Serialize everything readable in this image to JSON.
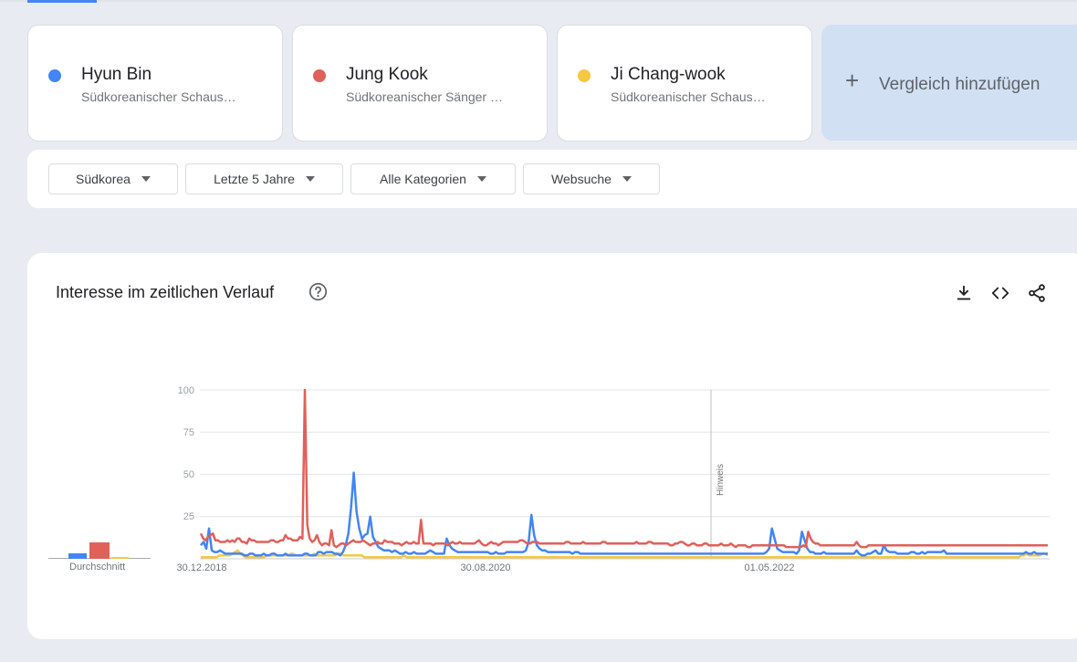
{
  "terms": [
    {
      "name": "Hyun Bin",
      "subtitle": "Südkoreanischer Schaus…",
      "color": "#4285f4"
    },
    {
      "name": "Jung Kook",
      "subtitle": "Südkoreanischer Sänger …",
      "color": "#e0605a"
    },
    {
      "name": "Ji Chang-wook",
      "subtitle": "Südkoreanischer Schaus…",
      "color": "#f4c842"
    }
  ],
  "add_compare": {
    "label": "Vergleich hinzufügen",
    "icon": "plus-icon"
  },
  "filters": [
    {
      "label": "Südkorea"
    },
    {
      "label": "Letzte 5 Jahre"
    },
    {
      "label": "Alle Kategorien"
    },
    {
      "label": "Websuche"
    }
  ],
  "chart": {
    "title": "Interesse im zeitlichen Verlauf",
    "icons": [
      "help-icon",
      "download-icon",
      "embed-icon",
      "share-icon"
    ],
    "average_label": "Durchschnitt",
    "note_label": "Hinweis"
  },
  "chart_data": {
    "type": "line",
    "y_ticks": [
      "100",
      "75",
      "50",
      "25"
    ],
    "x_tick_labels": [
      "30.12.2018",
      "30.08.2020",
      "01.05.2022"
    ],
    "ylim": [
      0,
      100
    ],
    "averages": {
      "Hyun Bin": 3,
      "Jung Kook": 9,
      "Ji Chang-wook": 1
    },
    "series": [
      {
        "name": "Hyun Bin",
        "color": "#4285f4",
        "values": [
          8,
          10,
          6,
          18,
          5,
          4,
          4,
          5,
          4,
          3,
          3,
          3,
          3,
          3,
          3,
          3,
          2,
          2,
          3,
          3,
          2,
          2,
          2,
          3,
          2,
          2,
          3,
          3,
          2,
          2,
          2,
          3,
          2,
          2,
          2,
          2,
          2,
          2,
          3,
          3,
          2,
          2,
          2,
          4,
          4,
          3,
          4,
          4,
          4,
          3,
          3,
          2,
          4,
          8,
          15,
          30,
          51,
          28,
          18,
          12,
          14,
          15,
          25,
          13,
          10,
          7,
          6,
          5,
          5,
          5,
          4,
          5,
          4,
          3,
          3,
          4,
          3,
          3,
          4,
          3,
          3,
          3,
          3,
          4,
          5,
          4,
          3,
          3,
          3,
          3,
          12,
          8,
          6,
          5,
          4,
          4,
          4,
          4,
          4,
          4,
          4,
          4,
          4,
          4,
          4,
          4,
          3,
          3,
          4,
          3,
          3,
          3,
          4,
          4,
          4,
          4,
          4,
          4,
          4,
          5,
          10,
          26,
          14,
          8,
          6,
          5,
          5,
          4,
          4,
          4,
          4,
          4,
          4,
          4,
          4,
          4,
          3,
          4,
          4,
          3,
          3,
          3,
          3,
          3,
          3,
          3,
          3,
          3,
          3,
          3,
          3,
          3,
          3,
          3,
          3,
          3,
          3,
          3,
          3,
          3,
          3,
          3,
          3,
          3,
          3,
          3,
          3,
          3,
          3,
          3,
          3,
          3,
          3,
          3,
          3,
          3,
          3,
          3,
          3,
          3,
          3,
          3,
          3,
          3,
          3,
          3,
          3,
          3,
          3,
          3,
          3,
          3,
          3,
          3,
          3,
          3,
          3,
          3,
          3,
          3,
          3,
          3,
          3,
          3,
          3,
          3,
          3,
          4,
          6,
          18,
          12,
          6,
          5,
          4,
          4,
          4,
          4,
          4,
          3,
          5,
          16,
          11,
          6,
          4,
          4,
          3,
          3,
          3,
          4,
          3,
          3,
          3,
          3,
          3,
          3,
          3,
          3,
          3,
          3,
          3,
          5,
          3,
          2,
          2,
          3,
          3,
          4,
          5,
          3,
          3,
          8,
          5,
          4,
          4,
          4,
          3,
          3,
          3,
          3,
          3,
          4,
          4,
          3,
          3,
          4,
          3,
          4,
          4,
          4,
          4,
          4,
          4,
          5,
          3,
          3,
          3,
          3,
          3,
          3,
          3,
          3,
          3,
          3,
          3,
          3,
          3,
          3,
          3,
          3,
          3,
          3,
          3,
          3,
          3,
          3,
          3,
          3,
          3,
          3,
          3,
          3,
          3,
          4,
          3,
          3,
          4,
          3,
          3,
          3,
          3,
          3
        ]
      },
      {
        "name": "Jung Kook",
        "color": "#e0605a",
        "values": [
          15,
          12,
          11,
          13,
          14,
          15,
          11,
          11,
          10,
          10,
          10,
          11,
          10,
          11,
          10,
          12,
          12,
          10,
          10,
          9,
          12,
          11,
          11,
          10,
          10,
          10,
          10,
          10,
          10,
          11,
          11,
          10,
          10,
          11,
          11,
          14,
          12,
          12,
          11,
          11,
          11,
          13,
          12,
          100,
          20,
          12,
          10,
          11,
          14,
          10,
          8,
          9,
          9,
          8,
          17,
          8,
          7,
          8,
          9,
          9,
          8,
          9,
          10,
          11,
          10,
          10,
          10,
          11,
          10,
          9,
          8,
          9,
          9,
          10,
          9,
          9,
          11,
          10,
          10,
          10,
          9,
          9,
          9,
          8,
          9,
          10,
          9,
          9,
          10,
          9,
          9,
          23,
          9,
          9,
          9,
          9,
          8,
          9,
          9,
          9,
          9,
          9,
          8,
          9,
          10,
          9,
          9,
          10,
          9,
          9,
          9,
          9,
          9,
          9,
          10,
          11,
          9,
          8,
          8,
          9,
          10,
          9,
          9,
          8,
          9,
          10,
          10,
          10,
          10,
          10,
          10,
          10,
          11,
          11,
          10,
          9,
          9,
          10,
          10,
          10,
          9,
          9,
          9,
          9,
          9,
          9,
          9,
          9,
          9,
          9,
          9,
          10,
          10,
          9,
          9,
          9,
          9,
          9,
          10,
          9,
          9,
          9,
          9,
          9,
          9,
          9,
          10,
          10,
          9,
          9,
          9,
          9,
          9,
          9,
          9,
          9,
          9,
          9,
          9,
          9,
          10,
          9,
          9,
          9,
          9,
          10,
          10,
          9,
          9,
          9,
          9,
          9,
          9,
          9,
          8,
          8,
          9,
          9,
          10,
          10,
          9,
          8,
          8,
          9,
          9,
          8,
          8,
          8,
          9,
          9,
          8,
          8,
          8,
          8,
          8,
          9,
          8,
          8,
          8,
          9,
          8,
          7,
          8,
          8,
          8,
          8,
          7,
          7,
          8,
          8,
          8,
          8,
          8,
          8,
          8,
          8,
          8,
          8,
          8,
          8,
          8,
          8,
          7,
          7,
          7,
          7,
          7,
          7,
          7,
          8,
          7,
          16,
          12,
          10,
          9,
          9,
          8,
          8,
          8,
          8,
          8,
          8,
          8,
          8,
          8,
          8,
          8,
          8,
          8,
          8,
          8,
          10,
          8,
          7,
          7,
          7,
          8,
          8,
          8,
          8,
          8,
          8,
          8,
          8,
          8,
          8,
          8,
          8,
          8,
          8,
          8,
          8,
          8,
          8,
          8,
          8,
          8,
          8,
          8,
          8,
          8,
          8,
          8,
          8,
          8,
          8,
          8,
          8,
          8,
          8,
          8,
          8,
          8,
          8,
          8,
          8,
          8,
          8,
          8,
          8,
          8,
          8,
          8,
          8,
          8,
          8,
          8,
          8,
          8,
          8,
          8,
          8,
          8,
          8,
          8,
          8,
          8,
          8,
          8,
          8,
          8,
          8,
          8,
          8,
          8,
          8,
          8,
          8,
          8,
          8,
          8
        ]
      },
      {
        "name": "Ji Chang-wook",
        "color": "#f4c842",
        "values": [
          1,
          1,
          1,
          1,
          1,
          1,
          1,
          2,
          2,
          2,
          2,
          2,
          3,
          4,
          5,
          3,
          2,
          1,
          1,
          1,
          1,
          1,
          1,
          1,
          1,
          2,
          2,
          2,
          2,
          2,
          2,
          2,
          2,
          2,
          3,
          3,
          2,
          2,
          2,
          2,
          2,
          2,
          2,
          3,
          2,
          2,
          2,
          2,
          2,
          2,
          2,
          2,
          3,
          3,
          2,
          2,
          2,
          2,
          2,
          2,
          2,
          2,
          1,
          1,
          1,
          1,
          1,
          1,
          1,
          1,
          1,
          1,
          1,
          1,
          1,
          1,
          1,
          2,
          1,
          1,
          1,
          1,
          1,
          1,
          1,
          1,
          1,
          1,
          1,
          1,
          1,
          1,
          1,
          1,
          1,
          1,
          1,
          1,
          1,
          1,
          1,
          1,
          1,
          1,
          1,
          1,
          1,
          1,
          1,
          1,
          1,
          1,
          1,
          1,
          1,
          1,
          1,
          1,
          1,
          1,
          1,
          1,
          1,
          1,
          1,
          1,
          1,
          1,
          1,
          1,
          1,
          1,
          1,
          1,
          1,
          1,
          1,
          1,
          1,
          1,
          1,
          1,
          1,
          1,
          1,
          1,
          1,
          1,
          1,
          1,
          1,
          1,
          1,
          1,
          1,
          1,
          1,
          1,
          1,
          1,
          1,
          1,
          1,
          1,
          1,
          1,
          1,
          1,
          1,
          1,
          1,
          1,
          1,
          1,
          1,
          1,
          1,
          1,
          1,
          1,
          1,
          1,
          1,
          1,
          1,
          1,
          1,
          1,
          1,
          1,
          1,
          1,
          1,
          1,
          1,
          1,
          1,
          1,
          1,
          1,
          1,
          1,
          1,
          1,
          1,
          1,
          1,
          1,
          1,
          1,
          1,
          1,
          1,
          1,
          1,
          1,
          1,
          1,
          1,
          1,
          1,
          1,
          1,
          1,
          1,
          1,
          1,
          1,
          1,
          1,
          1,
          1,
          1,
          1,
          1,
          1,
          1,
          1,
          1,
          1,
          1,
          1,
          1,
          1,
          1,
          1,
          1,
          1,
          1,
          1,
          1,
          1,
          1,
          1,
          1,
          1,
          1,
          1,
          1,
          1,
          1,
          1,
          1,
          1,
          1,
          1,
          1,
          1,
          1,
          1,
          1,
          1,
          1,
          1,
          1,
          1,
          1,
          1,
          1,
          1,
          1,
          1,
          1,
          1,
          1,
          1,
          1,
          1,
          1,
          1,
          1,
          1,
          1,
          1,
          1,
          1,
          1,
          1,
          1,
          1,
          1,
          1,
          1,
          1,
          1,
          1,
          1,
          1,
          1,
          1,
          1,
          2,
          2,
          3,
          2,
          2,
          2,
          2,
          2,
          3,
          3,
          2
        ]
      }
    ]
  }
}
